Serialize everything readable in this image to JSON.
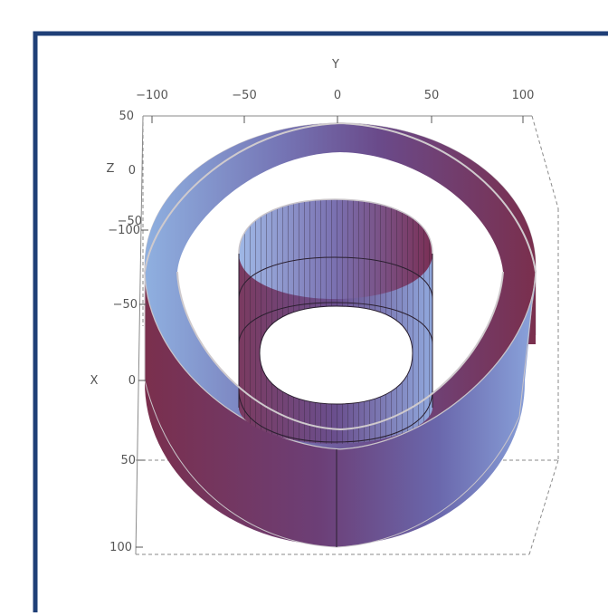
{
  "plot": {
    "axes": {
      "y": {
        "label": "Y",
        "ticks": [
          "−100",
          "−50",
          "0",
          "50",
          "100"
        ]
      },
      "z": {
        "label": "Z",
        "ticks": [
          "50",
          "0",
          "−50"
        ]
      },
      "x": {
        "label": "X",
        "ticks": [
          "−100",
          "−50",
          "0",
          "50",
          "100"
        ]
      }
    },
    "surfaces": [
      {
        "shape": "cylinder",
        "radius": 100
      },
      {
        "shape": "cylinder",
        "radius": 50
      }
    ],
    "colors": {
      "frame_border": "#1f3f77",
      "surface_blue": "#8ea8de",
      "surface_purple": "#6a5396",
      "surface_red": "#7a2f4d",
      "mesh": "#2a1f2f",
      "rim": "#c9c4c9"
    }
  }
}
